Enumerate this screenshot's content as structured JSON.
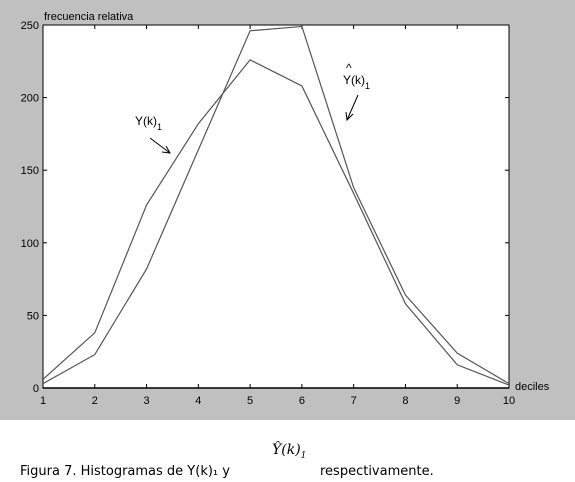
{
  "chart_data": {
    "type": "line",
    "title": "",
    "xlabel": "deciles",
    "ylabel": "frecuencia relativa",
    "x": [
      1,
      2,
      3,
      4,
      5,
      6,
      7,
      8,
      9,
      10
    ],
    "xlim": [
      1,
      10
    ],
    "ylim": [
      0,
      250
    ],
    "xticks": [
      "1",
      "2",
      "3",
      "4",
      "5",
      "6",
      "7",
      "8",
      "9",
      "10"
    ],
    "yticks": [
      "0",
      "50",
      "100",
      "150",
      "200",
      "250"
    ],
    "grid": false,
    "series": [
      {
        "name": "Y(k)1",
        "values": [
          6,
          38,
          126,
          182,
          226,
          208,
          134,
          58,
          16,
          2
        ]
      },
      {
        "name": "Ŷ(k)1",
        "values": [
          3,
          23,
          82,
          164,
          246,
          249,
          138,
          64,
          24,
          3
        ]
      }
    ],
    "annotations": [
      {
        "text": "Y(k)",
        "sub": "1",
        "points_to": "Y(k)1"
      },
      {
        "text": "Y(k)",
        "sub": "1",
        "hat": true,
        "points_to": "Ŷ(k)1"
      }
    ]
  },
  "caption": {
    "main": "Figura 7. Histogramas de Y(k)₁ y",
    "hat_symbol": "Ŷ(k)",
    "hat_sub": "1",
    "tail": "respectivamente."
  }
}
